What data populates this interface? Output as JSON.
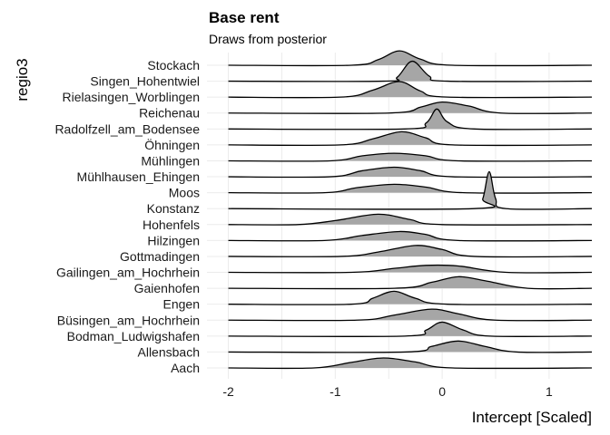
{
  "chart_data": {
    "type": "ridgeline",
    "title": "Base rent",
    "subtitle": "Draws from posterior",
    "xlabel": "Intercept [Scaled]",
    "ylabel": "regio3",
    "xlim": [
      -2.2,
      1.4
    ],
    "x_ticks": [
      -2,
      -1,
      0,
      1
    ],
    "x_tick_labels": [
      "-2",
      "-1",
      "0",
      "1"
    ],
    "grid": true,
    "categories": [
      "Stockach",
      "Singen_Hohentwiel",
      "Rielasingen_Worblingen",
      "Reichenau",
      "Radolfzell_am_Bodensee",
      "Öhningen",
      "Mühlingen",
      "Mühlhausen_Ehingen",
      "Moos",
      "Konstanz",
      "Hohenfels",
      "Hilzingen",
      "Gottmadingen",
      "Gailingen_am_Hochrhein",
      "Gaienhofen",
      "Engen",
      "Büsingen_am_Hochrhein",
      "Bodman_Ludwigshafen",
      "Allensbach",
      "Aach"
    ],
    "series": [
      {
        "category": "Stockach",
        "density_x": [
          -2.0,
          -0.85,
          -0.6,
          -0.4,
          -0.2,
          0.1,
          1.4
        ],
        "density_y": [
          0,
          0,
          0.28,
          0.72,
          0.3,
          0,
          0
        ]
      },
      {
        "category": "Singen_Hohentwiel",
        "density_x": [
          -2.0,
          -0.55,
          -0.42,
          -0.28,
          -0.12,
          0.05,
          1.4
        ],
        "density_y": [
          0,
          0,
          0.2,
          1.0,
          0.25,
          0,
          0
        ]
      },
      {
        "category": "Rielasingen_Worblingen",
        "density_x": [
          -2.0,
          -0.95,
          -0.65,
          -0.4,
          -0.2,
          0.05,
          1.4
        ],
        "density_y": [
          0,
          0,
          0.35,
          0.78,
          0.3,
          0,
          0
        ]
      },
      {
        "category": "Reichenau",
        "density_x": [
          -2.0,
          -0.5,
          -0.2,
          0.0,
          0.25,
          0.55,
          1.4
        ],
        "density_y": [
          0,
          0,
          0.3,
          0.55,
          0.35,
          0,
          0
        ]
      },
      {
        "category": "Radolfzell_am_Bodensee",
        "density_x": [
          -2.0,
          -0.35,
          -0.15,
          -0.05,
          0.05,
          0.3,
          1.4
        ],
        "density_y": [
          0,
          0,
          0.3,
          1.0,
          0.35,
          0,
          0
        ]
      },
      {
        "category": "Öhningen",
        "density_x": [
          -2.0,
          -0.95,
          -0.65,
          -0.38,
          -0.15,
          0.1,
          1.4
        ],
        "density_y": [
          0,
          0,
          0.3,
          0.66,
          0.35,
          0,
          0
        ]
      },
      {
        "category": "Mühlingen",
        "density_x": [
          -2.0,
          -1.05,
          -0.75,
          -0.45,
          -0.15,
          0.15,
          1.4
        ],
        "density_y": [
          0,
          0,
          0.25,
          0.38,
          0.25,
          0,
          0
        ]
      },
      {
        "category": "Mühlhausen_Ehingen",
        "density_x": [
          -2.0,
          -1.05,
          -0.75,
          -0.45,
          -0.2,
          0.1,
          1.4
        ],
        "density_y": [
          0,
          0,
          0.3,
          0.48,
          0.3,
          0,
          0
        ]
      },
      {
        "category": "Moos",
        "density_x": [
          -2.0,
          -1.1,
          -0.8,
          -0.45,
          -0.15,
          0.2,
          1.4
        ],
        "density_y": [
          0,
          0,
          0.25,
          0.42,
          0.28,
          0,
          0
        ]
      },
      {
        "category": "Konstanz",
        "density_x": [
          -2.0,
          0.3,
          0.38,
          0.44,
          0.5,
          0.6,
          1.4
        ],
        "density_y": [
          0,
          0,
          0.5,
          1.85,
          0.5,
          0,
          0
        ]
      },
      {
        "category": "Hohenfels",
        "density_x": [
          -2.0,
          -1.35,
          -1.0,
          -0.6,
          -0.3,
          0.0,
          1.4
        ],
        "density_y": [
          0,
          0,
          0.2,
          0.52,
          0.25,
          0,
          0
        ]
      },
      {
        "category": "Hilzingen",
        "density_x": [
          -2.0,
          -1.1,
          -0.75,
          -0.4,
          -0.15,
          0.15,
          1.4
        ],
        "density_y": [
          0,
          0,
          0.25,
          0.45,
          0.3,
          0,
          0
        ]
      },
      {
        "category": "Gottmadingen",
        "density_x": [
          -2.0,
          -0.95,
          -0.6,
          -0.25,
          0.0,
          0.3,
          1.4
        ],
        "density_y": [
          0,
          0,
          0.22,
          0.55,
          0.35,
          0,
          0
        ]
      },
      {
        "category": "Gailingen_am_Hochrhein",
        "density_x": [
          -2.0,
          -0.85,
          -0.45,
          -0.15,
          0.15,
          0.6,
          1.4
        ],
        "density_y": [
          0,
          0,
          0.2,
          0.35,
          0.32,
          0,
          0
        ]
      },
      {
        "category": "Gaienhofen",
        "density_x": [
          -2.0,
          -0.45,
          -0.1,
          0.15,
          0.4,
          0.8,
          1.4
        ],
        "density_y": [
          0,
          0,
          0.3,
          0.58,
          0.38,
          0,
          0
        ]
      },
      {
        "category": "Engen",
        "density_x": [
          -2.0,
          -0.85,
          -0.65,
          -0.45,
          -0.25,
          0.05,
          1.4
        ],
        "density_y": [
          0,
          0,
          0.3,
          0.65,
          0.3,
          0,
          0
        ]
      },
      {
        "category": "Büsingen_am_Hochrhein",
        "density_x": [
          -2.0,
          -0.8,
          -0.45,
          -0.1,
          0.15,
          0.5,
          1.4
        ],
        "density_y": [
          0,
          0,
          0.25,
          0.55,
          0.32,
          0,
          0
        ]
      },
      {
        "category": "Bodman_Ludwigshafen",
        "density_x": [
          -2.0,
          -0.35,
          -0.15,
          0.0,
          0.2,
          0.45,
          1.4
        ],
        "density_y": [
          0,
          0,
          0.3,
          0.7,
          0.3,
          0,
          0
        ]
      },
      {
        "category": "Allensbach",
        "density_x": [
          -2.0,
          -0.35,
          -0.1,
          0.15,
          0.4,
          0.7,
          1.4
        ],
        "density_y": [
          0,
          0,
          0.28,
          0.55,
          0.28,
          0,
          0
        ]
      },
      {
        "category": "Aach",
        "density_x": [
          -2.0,
          -1.2,
          -0.85,
          -0.55,
          -0.25,
          0.1,
          1.4
        ],
        "density_y": [
          0,
          0,
          0.28,
          0.5,
          0.3,
          0,
          0
        ]
      }
    ]
  }
}
